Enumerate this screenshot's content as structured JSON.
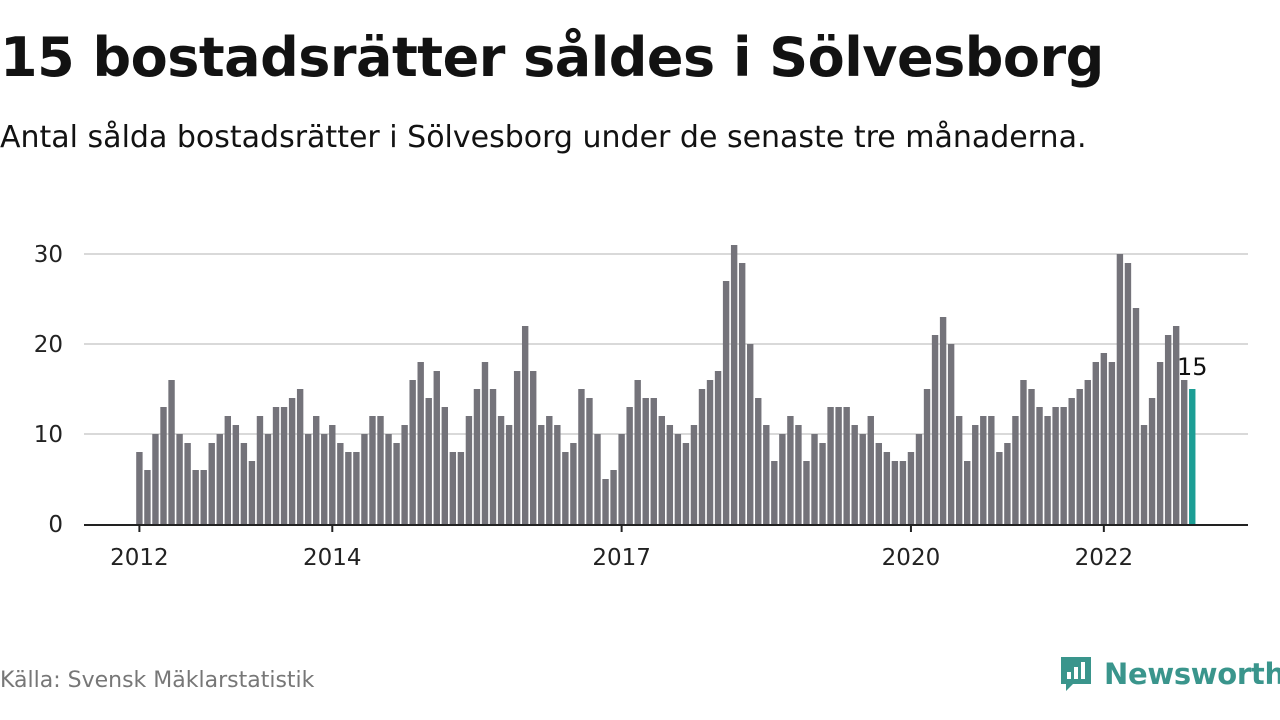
{
  "title": "15 bostadsrätter såldes i Sölvesborg",
  "subtitle": "Antal sålda bostadsrätter i Sölvesborg under de senaste tre månaderna.",
  "source": "Källa: Svensk Mäklarstatistik",
  "brand": "Newsworthy",
  "colors": {
    "bar": "#74737a",
    "highlight": "#1c9e95",
    "brand": "#3a958c"
  },
  "chart_data": {
    "type": "bar",
    "ylim": [
      0,
      31
    ],
    "y_ticks": [
      "0",
      "10",
      "20",
      "30"
    ],
    "y_tick_values": [
      0,
      10,
      20,
      30
    ],
    "x_ticks": [
      "2012",
      "2014",
      "2017",
      "2020",
      "2022"
    ],
    "x_tick_index": [
      0,
      24,
      60,
      96,
      120
    ],
    "values": [
      8,
      6,
      10,
      13,
      16,
      10,
      9,
      6,
      6,
      9,
      10,
      12,
      11,
      9,
      7,
      12,
      10,
      13,
      13,
      14,
      15,
      10,
      12,
      10,
      11,
      9,
      8,
      8,
      10,
      12,
      12,
      10,
      9,
      11,
      16,
      18,
      14,
      17,
      13,
      8,
      8,
      12,
      15,
      18,
      15,
      12,
      11,
      17,
      22,
      17,
      11,
      12,
      11,
      8,
      9,
      15,
      14,
      10,
      5,
      6,
      10,
      13,
      16,
      14,
      14,
      12,
      11,
      10,
      9,
      11,
      15,
      16,
      17,
      27,
      31,
      29,
      20,
      14,
      11,
      7,
      10,
      12,
      11,
      7,
      10,
      9,
      13,
      13,
      13,
      11,
      10,
      12,
      9,
      8,
      7,
      7,
      8,
      10,
      15,
      21,
      23,
      20,
      12,
      7,
      11,
      12,
      12,
      8,
      9,
      12,
      16,
      15,
      13,
      12,
      13,
      13,
      14,
      15,
      16,
      18,
      19,
      18,
      30,
      29,
      24,
      11,
      14,
      18,
      21,
      22,
      16,
      15
    ],
    "highlight_label": "15",
    "grid": true
  }
}
